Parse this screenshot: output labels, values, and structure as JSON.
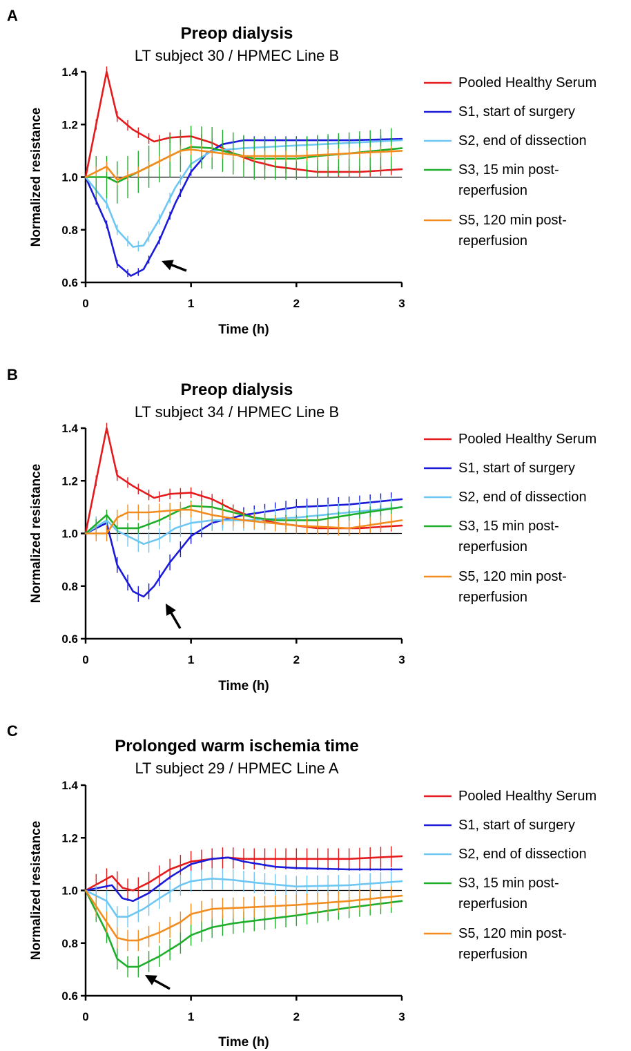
{
  "chart_data": [
    {
      "panel": "A",
      "type": "line",
      "title": "Preop dialysis",
      "subtitle": "LT subject 30 / HPMEC Line B",
      "xlabel": "Time (h)",
      "ylabel": "Normalized resistance",
      "xlim": [
        0,
        3
      ],
      "ylim": [
        0.6,
        1.4
      ],
      "xticks": [
        "0",
        "1",
        "2",
        "3"
      ],
      "yticks": [
        "0.6",
        "0.8",
        "1.0",
        "1.2",
        "1.4"
      ],
      "reference_line": 1.0,
      "legend_position": "right",
      "series": [
        {
          "name": "Pooled Healthy Serum",
          "color": "#e41a1c",
          "err": 0.02,
          "x": [
            0,
            0.2,
            0.3,
            0.45,
            0.65,
            0.8,
            1.0,
            1.2,
            1.4,
            1.6,
            1.8,
            2.0,
            2.2,
            2.4,
            2.6,
            2.8,
            3.0
          ],
          "y": [
            1.0,
            1.4,
            1.23,
            1.18,
            1.135,
            1.15,
            1.155,
            1.13,
            1.09,
            1.06,
            1.04,
            1.03,
            1.02,
            1.02,
            1.02,
            1.025,
            1.03
          ]
        },
        {
          "name": "S1, start of surgery",
          "color": "#1a1ad8",
          "err": 0.015,
          "x": [
            0,
            0.2,
            0.3,
            0.43,
            0.55,
            0.7,
            0.85,
            1.0,
            1.15,
            1.3,
            1.5,
            1.8,
            2.0,
            2.5,
            3.0
          ],
          "y": [
            1.0,
            0.82,
            0.67,
            0.625,
            0.65,
            0.76,
            0.9,
            1.02,
            1.09,
            1.125,
            1.14,
            1.14,
            1.14,
            1.14,
            1.145
          ]
        },
        {
          "name": "S2, end of dissection",
          "color": "#6ec6f2",
          "err": 0.02,
          "x": [
            0,
            0.2,
            0.3,
            0.45,
            0.55,
            0.7,
            0.85,
            1.0,
            1.2,
            1.5,
            2.0,
            2.5,
            3.0
          ],
          "y": [
            1.0,
            0.9,
            0.8,
            0.735,
            0.74,
            0.84,
            0.96,
            1.05,
            1.1,
            1.11,
            1.12,
            1.13,
            1.14
          ]
        },
        {
          "name": "S3, 15 min post-reperfusion",
          "color": "#1fae2c",
          "err": 0.08,
          "x": [
            0,
            0.2,
            0.3,
            0.5,
            0.7,
            0.9,
            1.0,
            1.2,
            1.4,
            1.6,
            1.8,
            2.0,
            2.2,
            2.5,
            3.0
          ],
          "y": [
            1.0,
            1.0,
            0.98,
            1.02,
            1.06,
            1.1,
            1.115,
            1.11,
            1.09,
            1.07,
            1.07,
            1.07,
            1.08,
            1.09,
            1.11
          ]
        },
        {
          "name": "S5, 120 min post-reperfusion",
          "color": "#f28c1e",
          "err": 0.02,
          "x": [
            0,
            0.2,
            0.3,
            0.5,
            0.7,
            0.9,
            1.0,
            1.2,
            1.5,
            2.0,
            2.5,
            3.0
          ],
          "y": [
            1.0,
            1.04,
            0.99,
            1.02,
            1.06,
            1.1,
            1.105,
            1.095,
            1.08,
            1.08,
            1.09,
            1.1
          ]
        }
      ]
    },
    {
      "panel": "B",
      "type": "line",
      "title": "Preop dialysis",
      "subtitle": "LT subject 34 / HPMEC Line B",
      "xlabel": "Time (h)",
      "ylabel": "Normalized resistance",
      "xlim": [
        0,
        3
      ],
      "ylim": [
        0.6,
        1.4
      ],
      "xticks": [
        "0",
        "1",
        "2",
        "3"
      ],
      "yticks": [
        "0.6",
        "0.8",
        "1.0",
        "1.2",
        "1.4"
      ],
      "reference_line": 1.0,
      "legend_position": "right",
      "series": [
        {
          "name": "Pooled Healthy Serum",
          "color": "#e41a1c",
          "err": 0.02,
          "x": [
            0,
            0.2,
            0.3,
            0.45,
            0.65,
            0.8,
            1.0,
            1.2,
            1.4,
            1.6,
            1.8,
            2.0,
            2.2,
            2.4,
            2.6,
            2.8,
            3.0
          ],
          "y": [
            1.0,
            1.4,
            1.22,
            1.18,
            1.135,
            1.15,
            1.155,
            1.13,
            1.09,
            1.06,
            1.04,
            1.03,
            1.02,
            1.02,
            1.02,
            1.025,
            1.03
          ]
        },
        {
          "name": "S1, start of surgery",
          "color": "#1a1ad8",
          "err": 0.03,
          "x": [
            0,
            0.2,
            0.3,
            0.45,
            0.55,
            0.65,
            0.8,
            1.0,
            1.2,
            1.5,
            2.0,
            2.5,
            3.0
          ],
          "y": [
            1.0,
            1.04,
            0.88,
            0.78,
            0.76,
            0.8,
            0.89,
            0.99,
            1.04,
            1.07,
            1.1,
            1.11,
            1.13
          ]
        },
        {
          "name": "S2, end of dissection",
          "color": "#6ec6f2",
          "err": 0.04,
          "x": [
            0,
            0.2,
            0.3,
            0.45,
            0.55,
            0.7,
            0.85,
            1.0,
            1.2,
            1.5,
            2.0,
            2.5,
            3.0
          ],
          "y": [
            1.0,
            1.05,
            1.01,
            0.98,
            0.96,
            0.98,
            1.02,
            1.04,
            1.05,
            1.05,
            1.06,
            1.08,
            1.1
          ]
        },
        {
          "name": "S3, 15 min post-reperfusion",
          "color": "#1fae2c",
          "err": 0.02,
          "x": [
            0,
            0.2,
            0.3,
            0.5,
            0.7,
            0.9,
            1.0,
            1.2,
            1.4,
            1.6,
            1.8,
            2.0,
            2.2,
            2.5,
            3.0
          ],
          "y": [
            1.0,
            1.07,
            1.02,
            1.02,
            1.05,
            1.09,
            1.105,
            1.1,
            1.08,
            1.06,
            1.05,
            1.05,
            1.05,
            1.07,
            1.1
          ]
        },
        {
          "name": "S5, 120 min post-reperfusion",
          "color": "#f28c1e",
          "err": 0.03,
          "x": [
            0,
            0.2,
            0.3,
            0.4,
            0.6,
            0.9,
            1.0,
            1.2,
            1.5,
            2.0,
            2.5,
            3.0
          ],
          "y": [
            1.0,
            1.0,
            1.06,
            1.08,
            1.08,
            1.09,
            1.09,
            1.07,
            1.05,
            1.03,
            1.02,
            1.05
          ]
        }
      ]
    },
    {
      "panel": "C",
      "type": "line",
      "title": "Prolonged warm ischemia time",
      "subtitle": "LT subject 29 / HPMEC Line A",
      "xlabel": "Time (h)",
      "ylabel": "Normalized resistance",
      "xlim": [
        0,
        3
      ],
      "ylim": [
        0.6,
        1.4
      ],
      "xticks": [
        "0",
        "1",
        "2",
        "3"
      ],
      "yticks": [
        "0.6",
        "0.8",
        "1.0",
        "1.2",
        "1.4"
      ],
      "reference_line": 1.0,
      "legend_position": "right",
      "series": [
        {
          "name": "Pooled Healthy Serum",
          "color": "#e41a1c",
          "err": 0.04,
          "x": [
            0,
            0.25,
            0.35,
            0.45,
            0.6,
            0.8,
            1.0,
            1.2,
            1.35,
            1.5,
            1.8,
            2.0,
            2.5,
            3.0
          ],
          "y": [
            1.0,
            1.055,
            1.01,
            1.0,
            1.03,
            1.08,
            1.11,
            1.12,
            1.125,
            1.12,
            1.12,
            1.12,
            1.12,
            1.13
          ]
        },
        {
          "name": "S1, start of surgery",
          "color": "#1a1ad8",
          "err": 0.005,
          "x": [
            0,
            0.25,
            0.35,
            0.45,
            0.6,
            0.8,
            1.0,
            1.2,
            1.35,
            1.5,
            1.8,
            2.0,
            2.5,
            3.0
          ],
          "y": [
            1.0,
            1.02,
            0.97,
            0.96,
            0.99,
            1.05,
            1.1,
            1.12,
            1.125,
            1.11,
            1.09,
            1.085,
            1.08,
            1.08
          ]
        },
        {
          "name": "S2, end of dissection",
          "color": "#6ec6f2",
          "err": 0.04,
          "x": [
            0,
            0.2,
            0.3,
            0.4,
            0.55,
            0.7,
            0.9,
            1.0,
            1.2,
            1.4,
            1.6,
            2.0,
            2.5,
            3.0
          ],
          "y": [
            1.0,
            0.96,
            0.9,
            0.9,
            0.93,
            0.97,
            1.02,
            1.035,
            1.045,
            1.04,
            1.03,
            1.015,
            1.02,
            1.035
          ]
        },
        {
          "name": "S3, 15 min post-reperfusion",
          "color": "#1fae2c",
          "err": 0.04,
          "x": [
            0,
            0.2,
            0.3,
            0.4,
            0.5,
            0.7,
            0.9,
            1.0,
            1.2,
            1.4,
            1.6,
            2.0,
            2.5,
            3.0
          ],
          "y": [
            1.0,
            0.84,
            0.74,
            0.71,
            0.71,
            0.75,
            0.8,
            0.83,
            0.86,
            0.875,
            0.885,
            0.905,
            0.935,
            0.96
          ]
        },
        {
          "name": "S5, 120 min post-reperfusion",
          "color": "#f28c1e",
          "err": 0.04,
          "x": [
            0,
            0.2,
            0.3,
            0.4,
            0.5,
            0.7,
            0.9,
            1.0,
            1.2,
            1.5,
            2.0,
            2.5,
            3.0
          ],
          "y": [
            1.0,
            0.88,
            0.82,
            0.81,
            0.81,
            0.84,
            0.88,
            0.91,
            0.93,
            0.935,
            0.945,
            0.96,
            0.98
          ]
        }
      ]
    }
  ]
}
